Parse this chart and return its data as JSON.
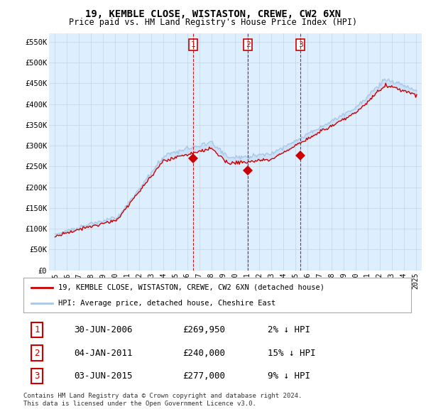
{
  "title": "19, KEMBLE CLOSE, WISTASTON, CREWE, CW2 6XN",
  "subtitle": "Price paid vs. HM Land Registry's House Price Index (HPI)",
  "legend_line1": "19, KEMBLE CLOSE, WISTASTON, CREWE, CW2 6XN (detached house)",
  "legend_line2": "HPI: Average price, detached house, Cheshire East",
  "transactions": [
    {
      "num": 1,
      "date": "30-JUN-2006",
      "price": 269950,
      "pct": "2%",
      "dir": "↓"
    },
    {
      "num": 2,
      "date": "04-JAN-2011",
      "price": 240000,
      "pct": "15%",
      "dir": "↓"
    },
    {
      "num": 3,
      "date": "03-JUN-2015",
      "price": 277000,
      "pct": "9%",
      "dir": "↓"
    }
  ],
  "transaction_dates_dec": [
    2006.5,
    2011.04,
    2015.42
  ],
  "trans_prices": [
    269950,
    240000,
    277000
  ],
  "footnote1": "Contains HM Land Registry data © Crown copyright and database right 2024.",
  "footnote2": "This data is licensed under the Open Government Licence v3.0.",
  "hpi_color": "#a8c8e8",
  "price_color": "#cc0000",
  "marker_color": "#cc0000",
  "vline_color": "#cc0000",
  "grid_color": "#c8d8e8",
  "chart_bg": "#ddeeff",
  "bg_color": "#ffffff",
  "ylim_min": 0,
  "ylim_max": 570000,
  "ytick_values": [
    0,
    50000,
    100000,
    150000,
    200000,
    250000,
    300000,
    350000,
    400000,
    450000,
    500000,
    550000
  ],
  "ytick_labels": [
    "£0",
    "£50K",
    "£100K",
    "£150K",
    "£200K",
    "£250K",
    "£300K",
    "£350K",
    "£400K",
    "£450K",
    "£500K",
    "£550K"
  ],
  "xlim_min": 1994.5,
  "xlim_max": 2025.5,
  "xtick_values": [
    1995,
    1996,
    1997,
    1998,
    1999,
    2000,
    2001,
    2002,
    2003,
    2004,
    2005,
    2006,
    2007,
    2008,
    2009,
    2010,
    2011,
    2012,
    2013,
    2014,
    2015,
    2016,
    2017,
    2018,
    2019,
    2020,
    2021,
    2022,
    2023,
    2024,
    2025
  ]
}
